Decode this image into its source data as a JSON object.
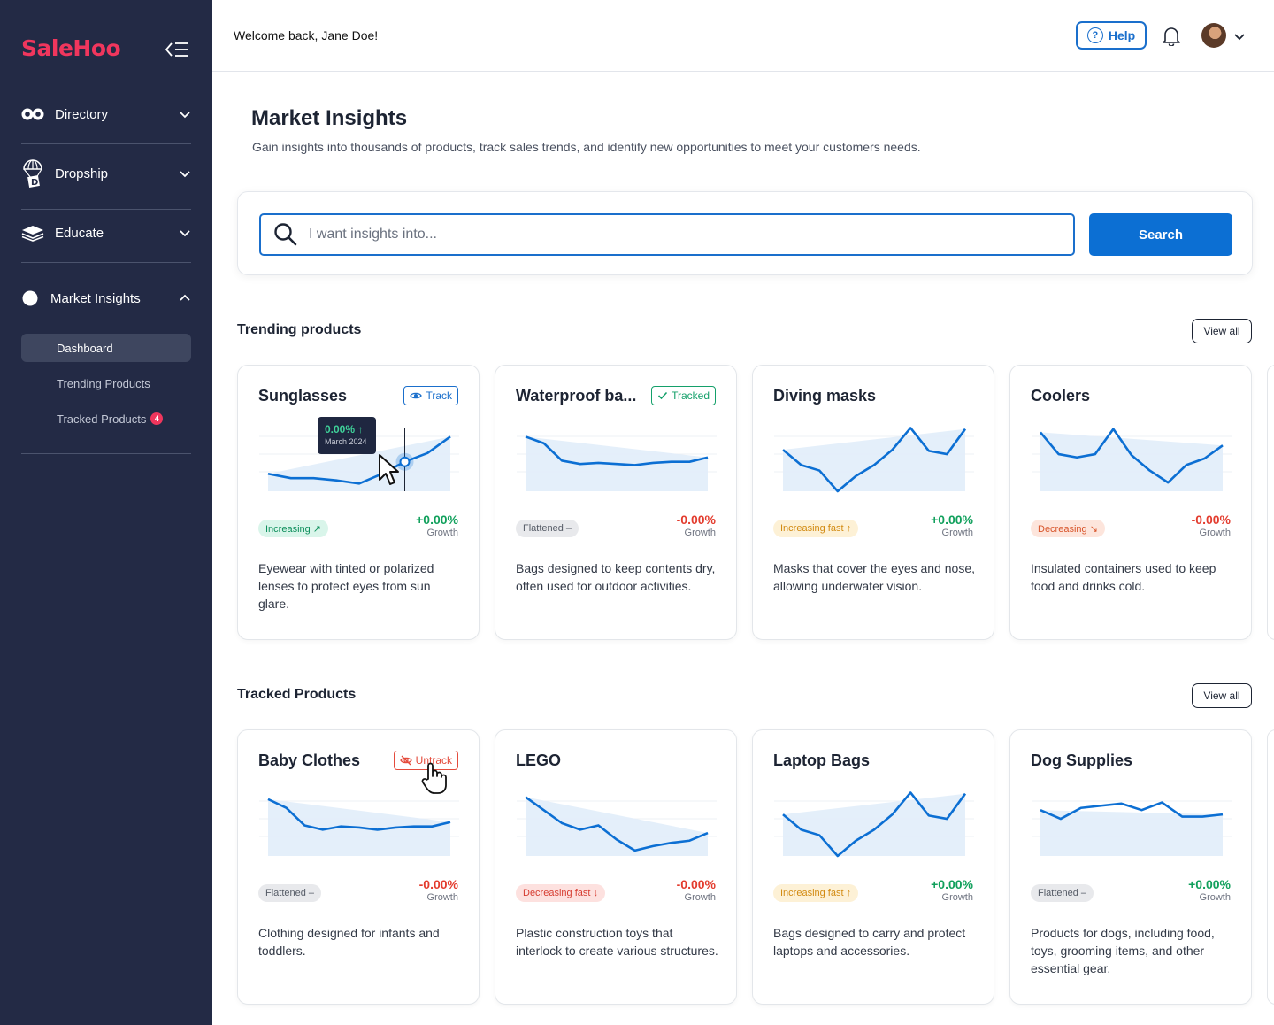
{
  "brand": {
    "logo_text": "SaleHoo",
    "color": "#f0365d"
  },
  "sidebar": {
    "items": [
      {
        "label": "Directory",
        "icon": "directory-icon",
        "expanded": false
      },
      {
        "label": "Dropship",
        "icon": "dropship-icon",
        "expanded": false
      },
      {
        "label": "Educate",
        "icon": "educate-icon",
        "expanded": false
      },
      {
        "label": "Market Insights",
        "icon": "market-insights-icon",
        "expanded": true
      }
    ],
    "sub_items": [
      {
        "label": "Dashboard",
        "active": true
      },
      {
        "label": "Trending Products",
        "active": false
      },
      {
        "label": "Tracked Products",
        "active": false,
        "badge": "4"
      }
    ]
  },
  "header": {
    "welcome": "Welcome back, Jane Doe!",
    "help_label": "Help",
    "help_icon": "?"
  },
  "main": {
    "title": "Market Insights",
    "subtitle": "Gain insights into thousands of products, track sales trends, and identify new opportunities to meet your customers needs.",
    "search": {
      "placeholder": "I want insights into...",
      "button_label": "Search"
    }
  },
  "trending": {
    "title": "Trending products",
    "view_all": "View all",
    "tooltip": {
      "value": "0.00% ↑",
      "date": "March 2024"
    },
    "cards": [
      {
        "title": "Sunglasses",
        "action": "Track",
        "action_type": "track",
        "trend": "Increasing ↗",
        "trend_type": "inc",
        "growth": "+0.00%",
        "growth_type": "pos",
        "growth_label": "Growth",
        "desc": "Eyewear with tinted or polarized lenses to protect eyes from sun glare.",
        "values": [
          16,
          12,
          12,
          10,
          7,
          16,
          27,
          35,
          50
        ]
      },
      {
        "title": "Waterproof ba...",
        "action": "Tracked",
        "action_type": "tracked",
        "trend": "Flattened –",
        "trend_type": "flat",
        "growth": "-0.00%",
        "growth_type": "neg",
        "growth_label": "Growth",
        "desc": "Bags designed to keep contents dry, often used for outdoor activities.",
        "values": [
          50,
          44,
          28,
          25,
          26,
          25,
          24,
          26,
          27,
          27,
          31
        ]
      },
      {
        "title": "Diving masks",
        "action": "",
        "action_type": "none",
        "trend": "Increasing fast ↑",
        "trend_type": "incfast",
        "growth": "+0.00%",
        "growth_type": "pos",
        "growth_label": "Growth",
        "desc": "Masks that cover the eyes and nose, allowing underwater vision.",
        "values": [
          38,
          24,
          19,
          0,
          14,
          24,
          38,
          58,
          37,
          34,
          57
        ]
      },
      {
        "title": "Coolers",
        "action": "",
        "action_type": "none",
        "trend": "Decreasing ↘",
        "trend_type": "dec",
        "growth": "-0.00%",
        "growth_type": "neg",
        "growth_label": "Growth",
        "desc": "Insulated containers used to keep food and drinks cold.",
        "values": [
          54,
          34,
          31,
          34,
          57,
          33,
          19,
          8,
          24,
          30,
          42
        ]
      }
    ]
  },
  "tracked": {
    "title": "Tracked Products",
    "view_all": "View all",
    "cards": [
      {
        "title": "Baby Clothes",
        "action": "Untrack",
        "action_type": "untrack",
        "trend": "Flattened –",
        "trend_type": "flat",
        "growth": "-0.00%",
        "growth_type": "neg",
        "growth_label": "Growth",
        "desc": "Clothing designed for infants and toddlers.",
        "values": [
          52,
          44,
          28,
          24,
          27,
          26,
          24,
          26,
          27,
          27,
          31
        ]
      },
      {
        "title": "LEGO",
        "action": "",
        "action_type": "none",
        "trend": "Decreasing fast ↓",
        "trend_type": "decfast",
        "growth": "-0.00%",
        "growth_type": "neg",
        "growth_label": "Growth",
        "desc": "Plastic construction toys that interlock to create various structures.",
        "values": [
          54,
          42,
          30,
          24,
          28,
          15,
          5,
          9,
          12,
          14,
          21
        ]
      },
      {
        "title": "Laptop Bags",
        "action": "",
        "action_type": "none",
        "trend": "Increasing fast ↑",
        "trend_type": "incfast",
        "growth": "+0.00%",
        "growth_type": "pos",
        "growth_label": "Growth",
        "desc": "Bags designed to carry and protect laptops and accessories.",
        "values": [
          38,
          24,
          19,
          0,
          14,
          24,
          38,
          58,
          37,
          34,
          57
        ]
      },
      {
        "title": "Dog Supplies",
        "action": "",
        "action_type": "none",
        "trend": "Flattened –",
        "trend_type": "flat",
        "growth": "+0.00%",
        "growth_type": "pos",
        "growth_label": "Growth",
        "desc": "Products for dogs, including food, toys, grooming items, and other essential gear.",
        "values": [
          42,
          34,
          44,
          46,
          48,
          42,
          49,
          36,
          36,
          38
        ]
      }
    ]
  }
}
